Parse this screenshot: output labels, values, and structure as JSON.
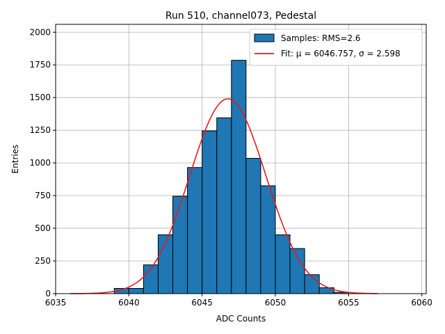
{
  "chart_data": {
    "type": "bar",
    "title": "Run 510, channel073, Pedestal",
    "xlabel": "ADC Counts",
    "ylabel": "Entries",
    "xlim": [
      6035,
      6060.3
    ],
    "ylim": [
      0,
      2060
    ],
    "xticks": [
      6035,
      6040,
      6045,
      6050,
      6055,
      6060
    ],
    "yticks": [
      0,
      250,
      500,
      750,
      1000,
      1250,
      1500,
      1750,
      2000
    ],
    "grid": true,
    "legend_position": "top-right",
    "bin_width": 1,
    "bins": [
      {
        "left": 6039,
        "count": 40
      },
      {
        "left": 6040,
        "count": 40
      },
      {
        "left": 6041,
        "count": 220
      },
      {
        "left": 6042,
        "count": 450
      },
      {
        "left": 6043,
        "count": 745
      },
      {
        "left": 6044,
        "count": 965
      },
      {
        "left": 6045,
        "count": 1245
      },
      {
        "left": 6046,
        "count": 1345
      },
      {
        "left": 6047,
        "count": 1785
      },
      {
        "left": 6048,
        "count": 1035
      },
      {
        "left": 6049,
        "count": 825
      },
      {
        "left": 6050,
        "count": 450
      },
      {
        "left": 6051,
        "count": 345
      },
      {
        "left": 6052,
        "count": 145
      },
      {
        "left": 6053,
        "count": 45
      },
      {
        "left": 6054,
        "count": 10
      }
    ],
    "series": [
      {
        "name": "Samples: RMS=2.6",
        "kind": "histogram",
        "color": "#1f77b4",
        "edge_color": "#000000"
      },
      {
        "name": "Fit: μ = 6046.757, σ = 2.598",
        "kind": "line",
        "color": "#e41a1c",
        "mu": 6046.757,
        "sigma": 2.598,
        "amplitude": 1490,
        "x_range": [
          6036,
          6057
        ]
      }
    ]
  }
}
